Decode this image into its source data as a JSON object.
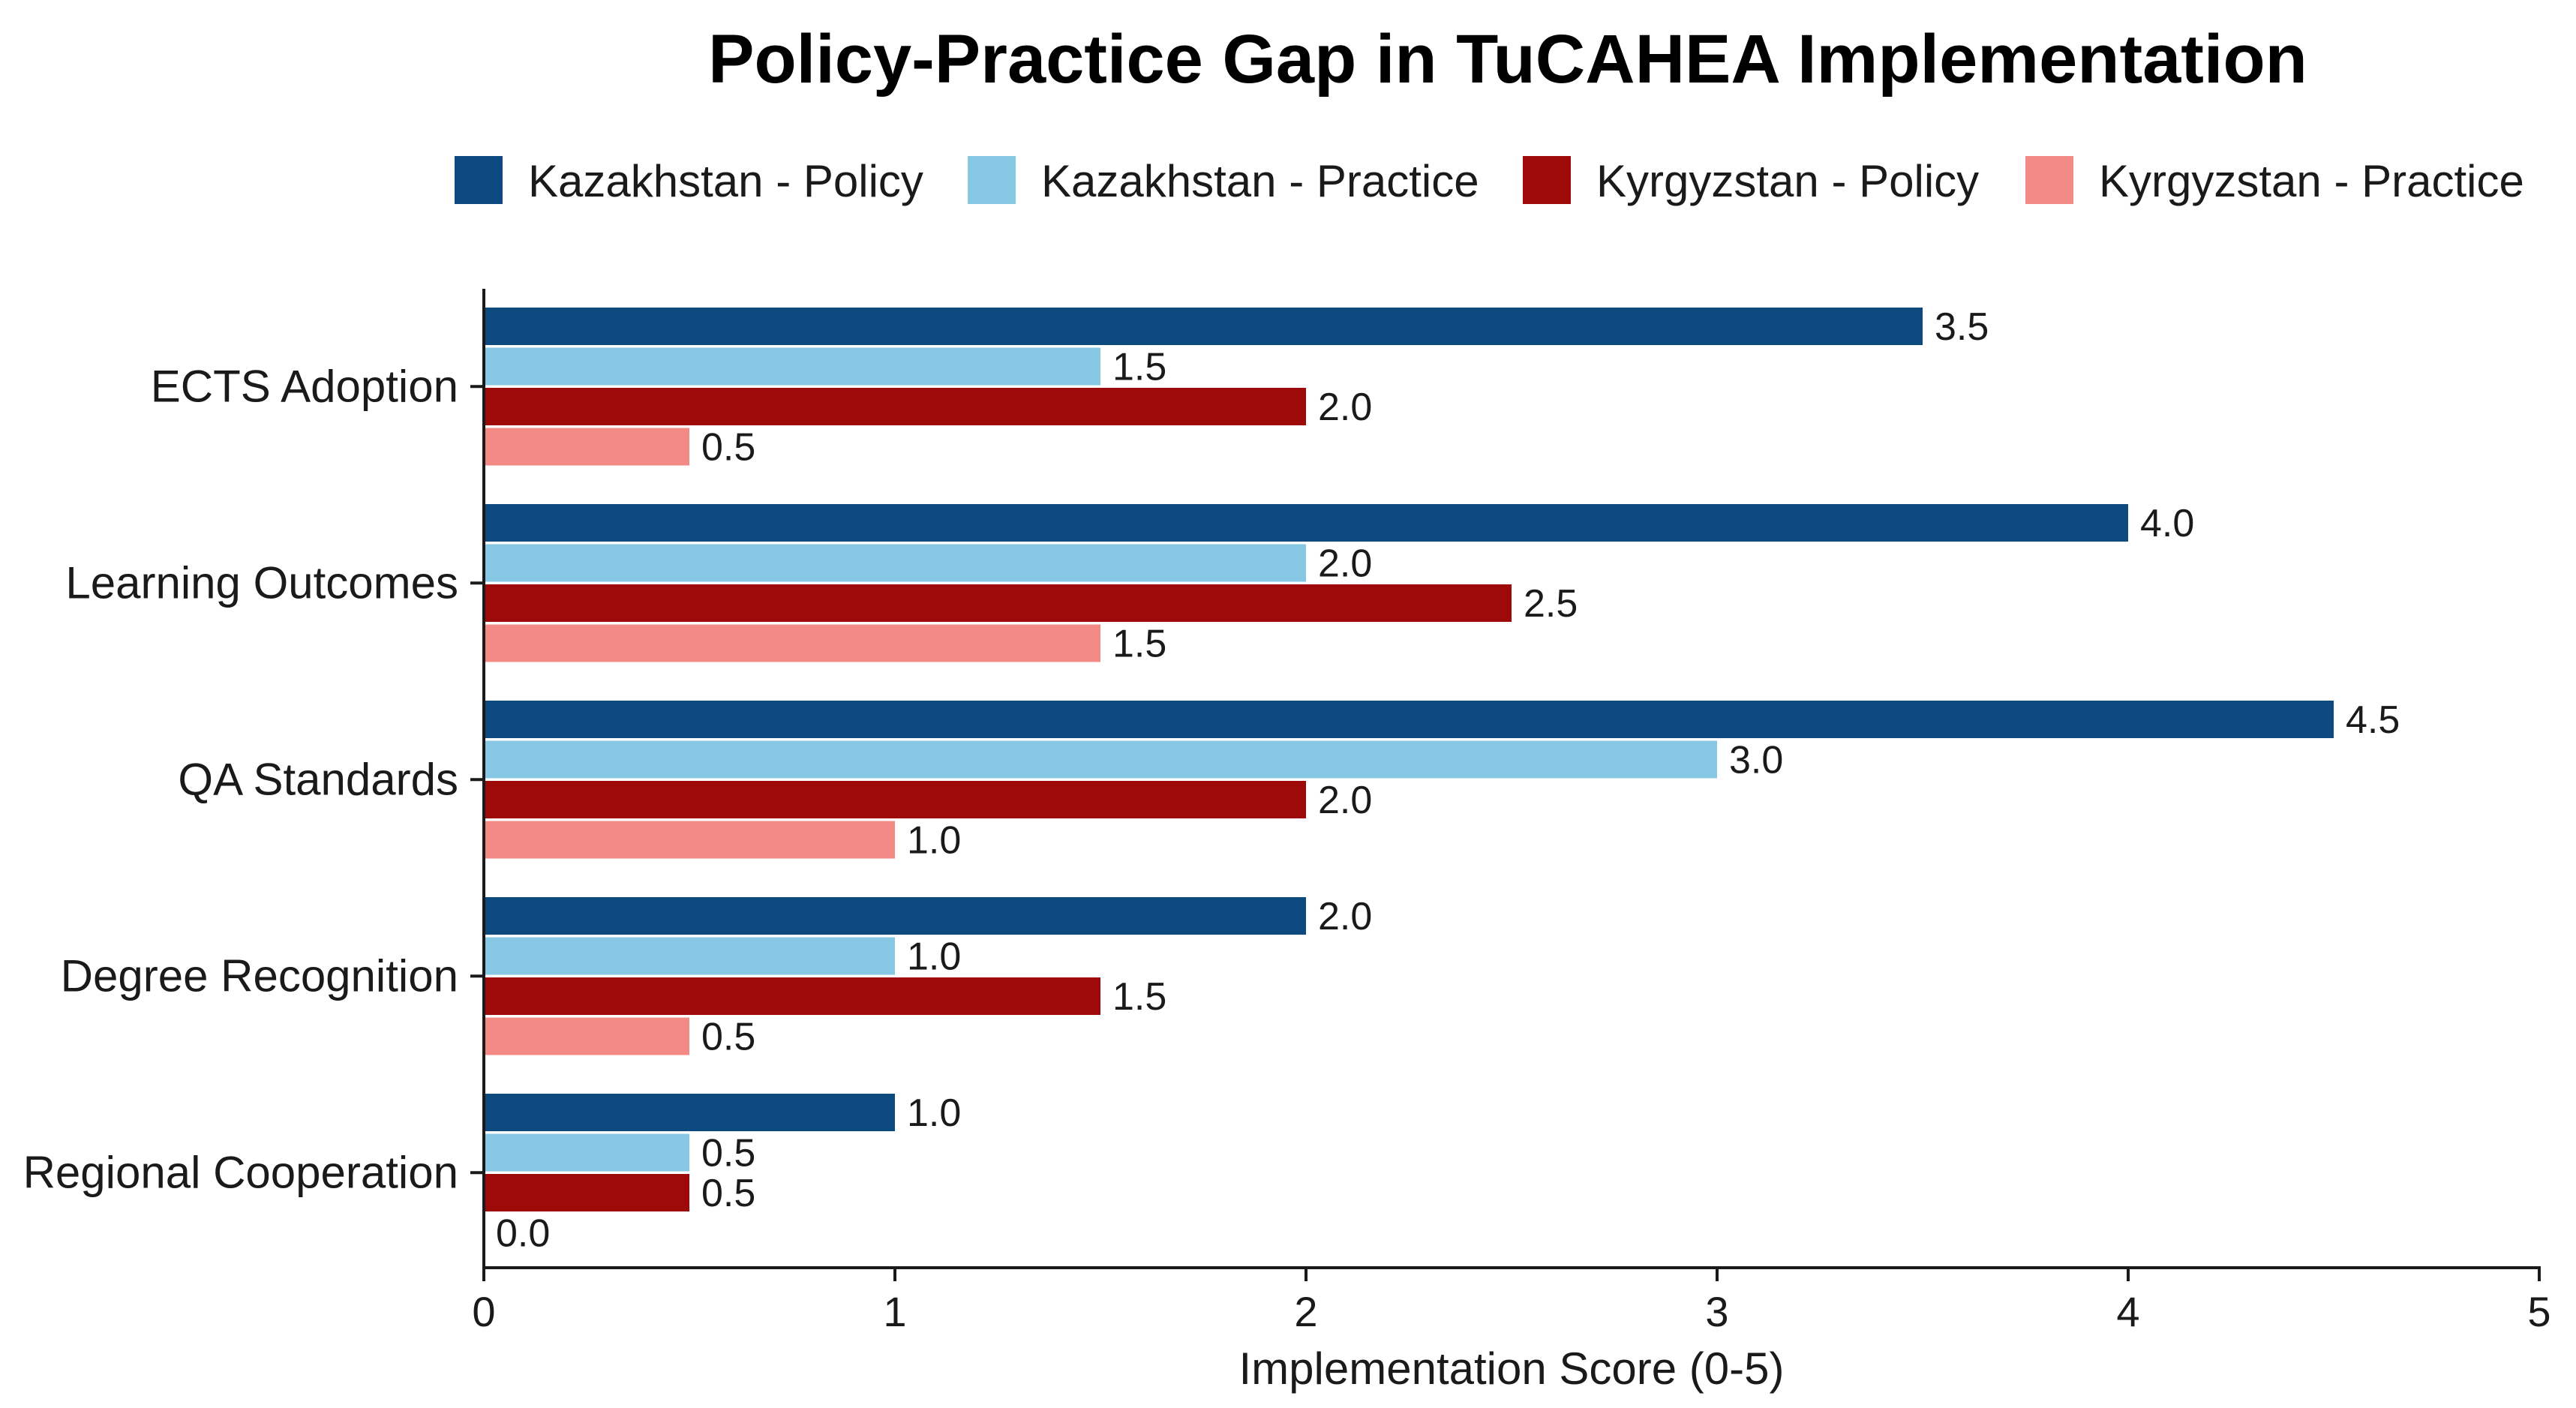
{
  "chart_data": {
    "type": "bar",
    "orientation": "horizontal",
    "title": "Policy-Practice Gap in TuCAHEA Implementation",
    "xlabel": "Implementation Score (0-5)",
    "ylabel": "",
    "xlim": [
      0,
      5
    ],
    "xticks": [
      "0",
      "1",
      "2",
      "3",
      "4",
      "5"
    ],
    "legend_position": "top",
    "grid": false,
    "categories": [
      "ECTS Adoption",
      "Learning Outcomes",
      "QA Standards",
      "Degree Recognition",
      "Regional Cooperation"
    ],
    "series": [
      {
        "name": "Kazakhstan - Policy",
        "color": "#0c4a80",
        "values": [
          3.5,
          4.0,
          4.5,
          2.0,
          1.0
        ],
        "labels": [
          "3.5",
          "4.0",
          "4.5",
          "2.0",
          "1.0"
        ]
      },
      {
        "name": "Kazakhstan - Practice",
        "color": "#86c7e3",
        "values": [
          1.5,
          2.0,
          3.0,
          1.0,
          0.5
        ],
        "labels": [
          "1.5",
          "2.0",
          "3.0",
          "1.0",
          "0.5"
        ]
      },
      {
        "name": "Kyrgyzstan - Policy",
        "color": "#9e0a0a",
        "values": [
          2.0,
          2.5,
          2.0,
          1.5,
          0.5
        ],
        "labels": [
          "2.0",
          "2.5",
          "2.0",
          "1.5",
          "0.5"
        ]
      },
      {
        "name": "Kyrgyzstan - Practice",
        "color": "#f48a85",
        "values": [
          0.5,
          1.5,
          1.0,
          0.5,
          0.0
        ],
        "labels": [
          "0.5",
          "1.5",
          "1.0",
          "0.5",
          "0.0"
        ]
      }
    ]
  }
}
